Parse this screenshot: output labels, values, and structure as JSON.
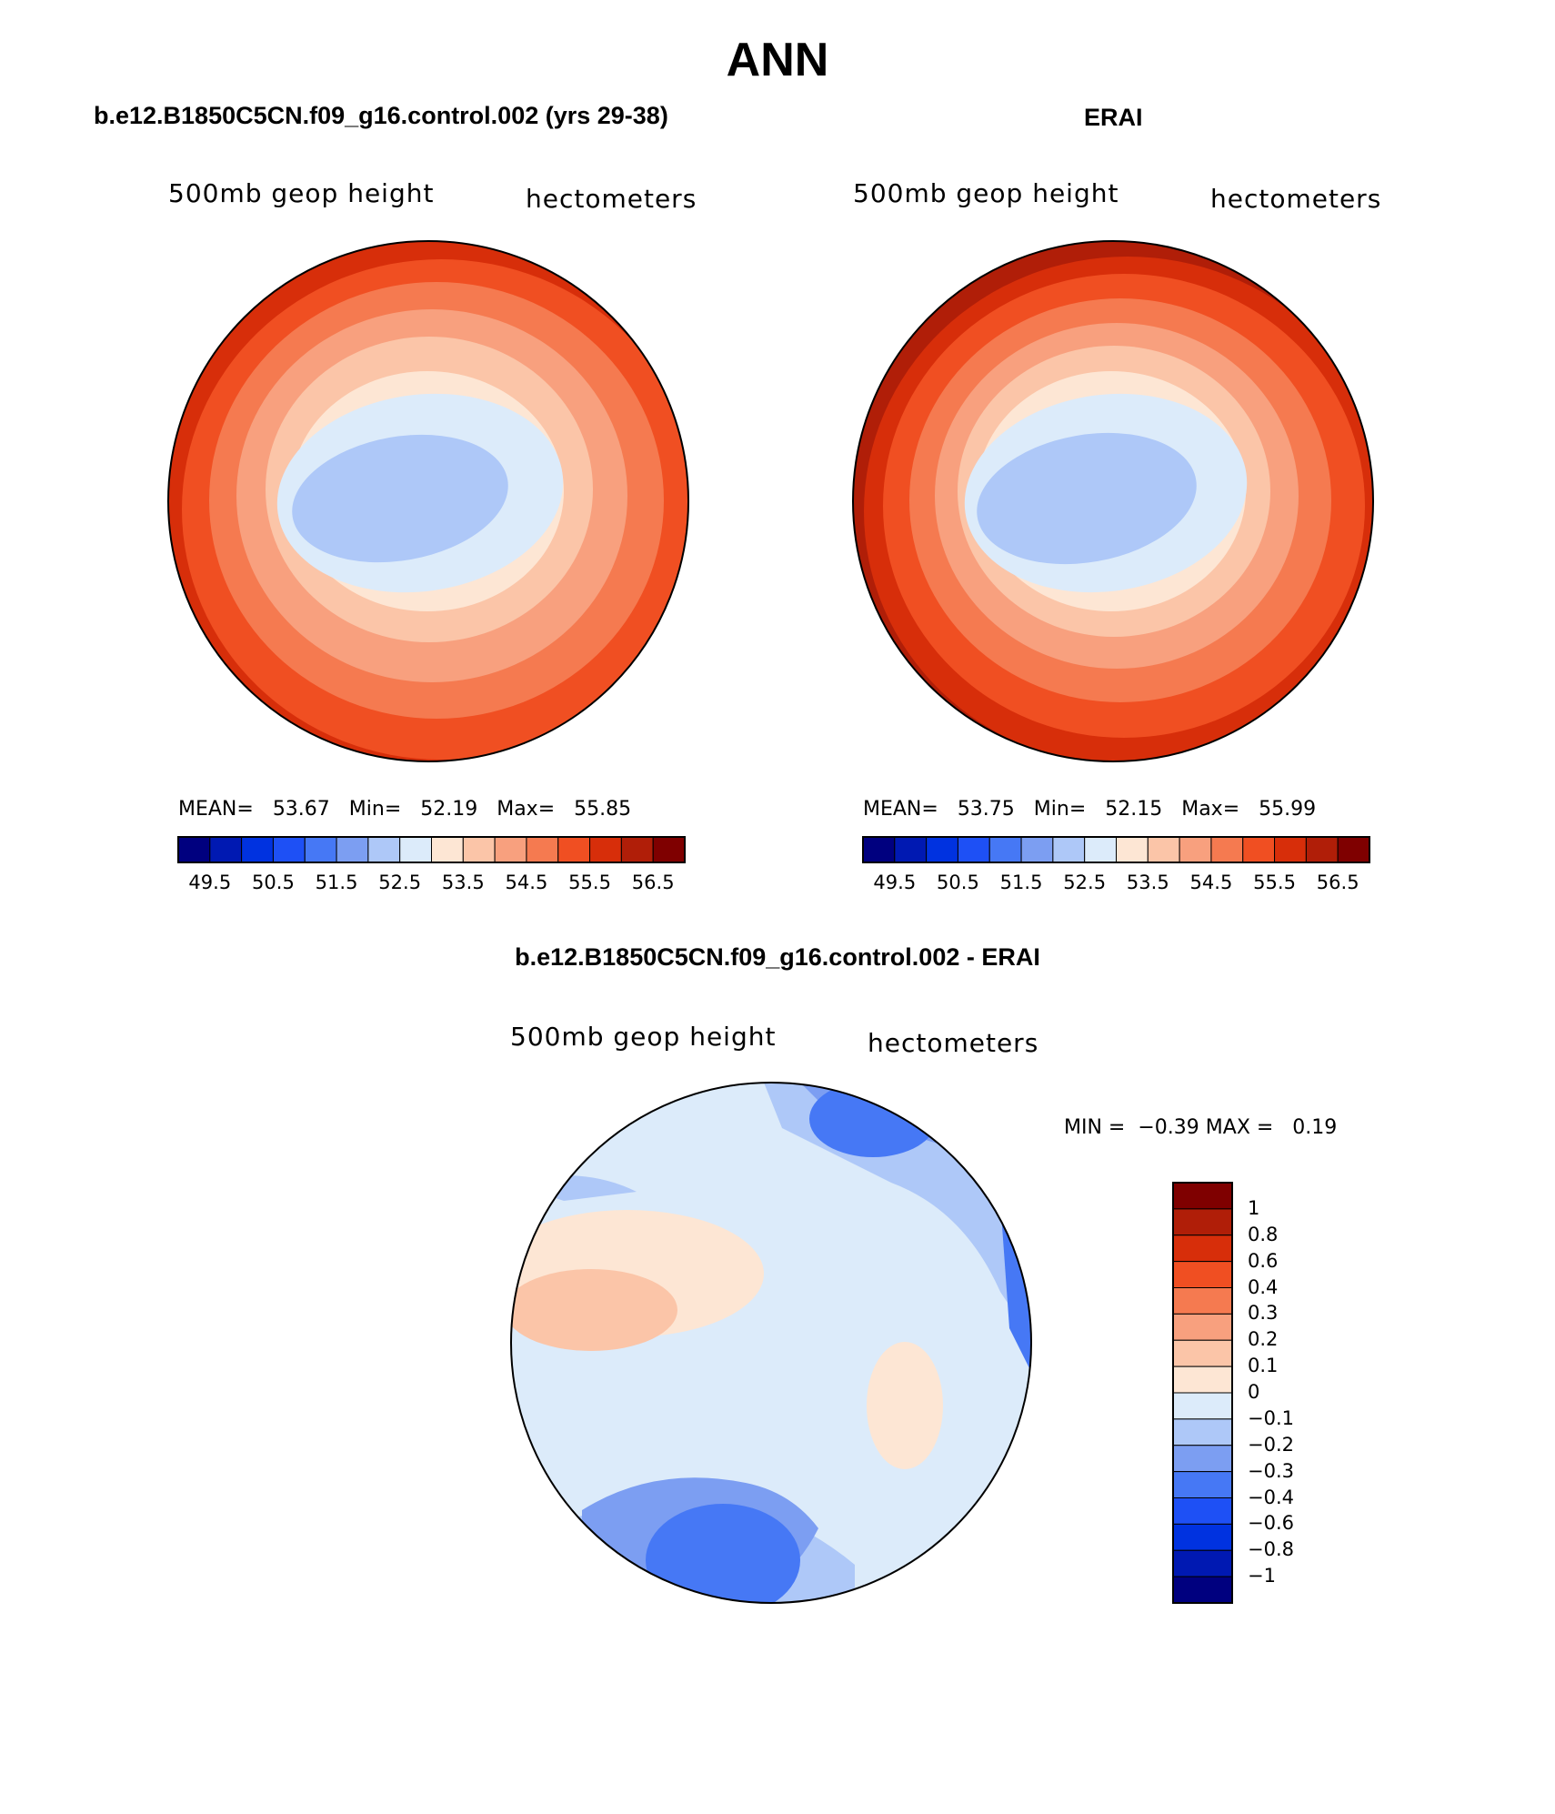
{
  "figure": {
    "title": "ANN"
  },
  "colors": {
    "abs_scale": [
      "#00007f",
      "#0019b2",
      "#0032e0",
      "#1e50f5",
      "#4678f5",
      "#7c9ef2",
      "#aec8f8",
      "#dcebfa",
      "#fde6d4",
      "#fbc5a8",
      "#f8a07e",
      "#f57a50",
      "#f04f22",
      "#d72e0a",
      "#b01e08",
      "#7f0000"
    ],
    "diff_scale": [
      "#00007f",
      "#0019b2",
      "#0032e0",
      "#1e50f5",
      "#4678f5",
      "#7c9ef2",
      "#aec8f8",
      "#dcebfa",
      "#fde6d4",
      "#fbc5a8",
      "#f8a07e",
      "#f57a50",
      "#f04f22",
      "#d72e0a",
      "#b01e08",
      "#7f0000"
    ],
    "coastline": "#000000"
  },
  "panels": {
    "model": {
      "title": "b.e12.B1850C5CN.f09_g16.control.002 (yrs 29-38)",
      "variable": "500mb geop height",
      "units": "hectometers",
      "stats": {
        "mean_label": "MEAN=",
        "mean": "53.67",
        "min_label": "Min=",
        "min": "52.19",
        "max_label": "Max=",
        "max": "55.85"
      }
    },
    "obs": {
      "title": "ERAI",
      "variable": "500mb geop height",
      "units": "hectometers",
      "stats": {
        "mean_label": "MEAN=",
        "mean": "53.75",
        "min_label": "Min=",
        "min": "52.15",
        "max_label": "Max=",
        "max": "55.99"
      }
    },
    "diff": {
      "title": "b.e12.B1850C5CN.f09_g16.control.002 - ERAI",
      "variable": "500mb geop height",
      "units": "hectometers",
      "stats": {
        "min_label": "MIN =",
        "min": "−0.39",
        "max_label": "MAX =",
        "max": "0.19"
      }
    }
  },
  "colorbars": {
    "abs_ticks": [
      "49.5",
      "50.5",
      "51.5",
      "52.5",
      "53.5",
      "54.5",
      "55.5",
      "56.5"
    ],
    "diff_ticks": [
      "1",
      "0.8",
      "0.6",
      "0.4",
      "0.3",
      "0.2",
      "0.1",
      "0",
      "−0.1",
      "−0.2",
      "−0.3",
      "−0.4",
      "−0.6",
      "−0.8",
      "−1"
    ]
  }
}
